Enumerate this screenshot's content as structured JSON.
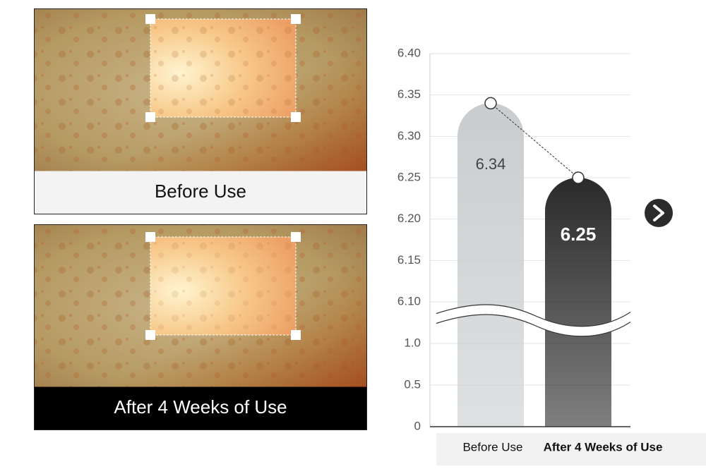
{
  "panels": [
    {
      "label": "Before Use"
    },
    {
      "label": "After 4 Weeks of Use"
    }
  ],
  "chart_data": {
    "type": "bar",
    "categories": [
      "Before Use",
      "After 4 Weeks of Use"
    ],
    "values": [
      6.34,
      6.25
    ],
    "colors": [
      "#c9cdcf",
      "#2a2a2a"
    ],
    "ylim": [
      0,
      6.4
    ],
    "y_break": [
      1,
      6.1
    ],
    "yticks": [
      0,
      0.5,
      {
        "value": 1,
        "label": "1.0"
      },
      {
        "value": 6.1,
        "label": "6.10"
      },
      6.15,
      {
        "value": 6.2,
        "label": "6.20"
      },
      6.25,
      {
        "value": 6.3,
        "label": "6.30"
      },
      6.35,
      {
        "value": 6.4,
        "label": "6.40"
      }
    ],
    "grid": true
  }
}
